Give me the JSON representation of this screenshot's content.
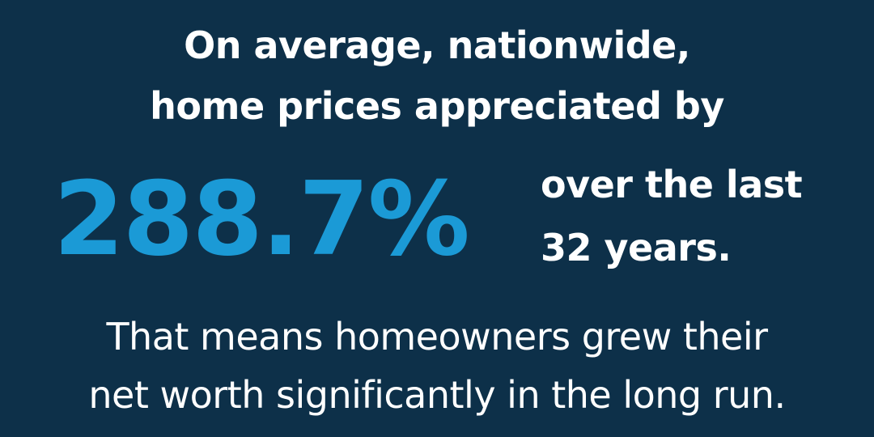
{
  "headline": {
    "line1": "On average, nationwide,",
    "line2": "home prices appreciated by"
  },
  "stat": {
    "value": "288.7%",
    "tail_line1": "over the last",
    "tail_line2": "32 years.",
    "value_color": "#1b9ad6"
  },
  "body": {
    "line1": "That means homeowners grew their",
    "line2": "net worth significantly in the long run."
  },
  "colors": {
    "background": "#0d3049",
    "text": "#ffffff"
  }
}
